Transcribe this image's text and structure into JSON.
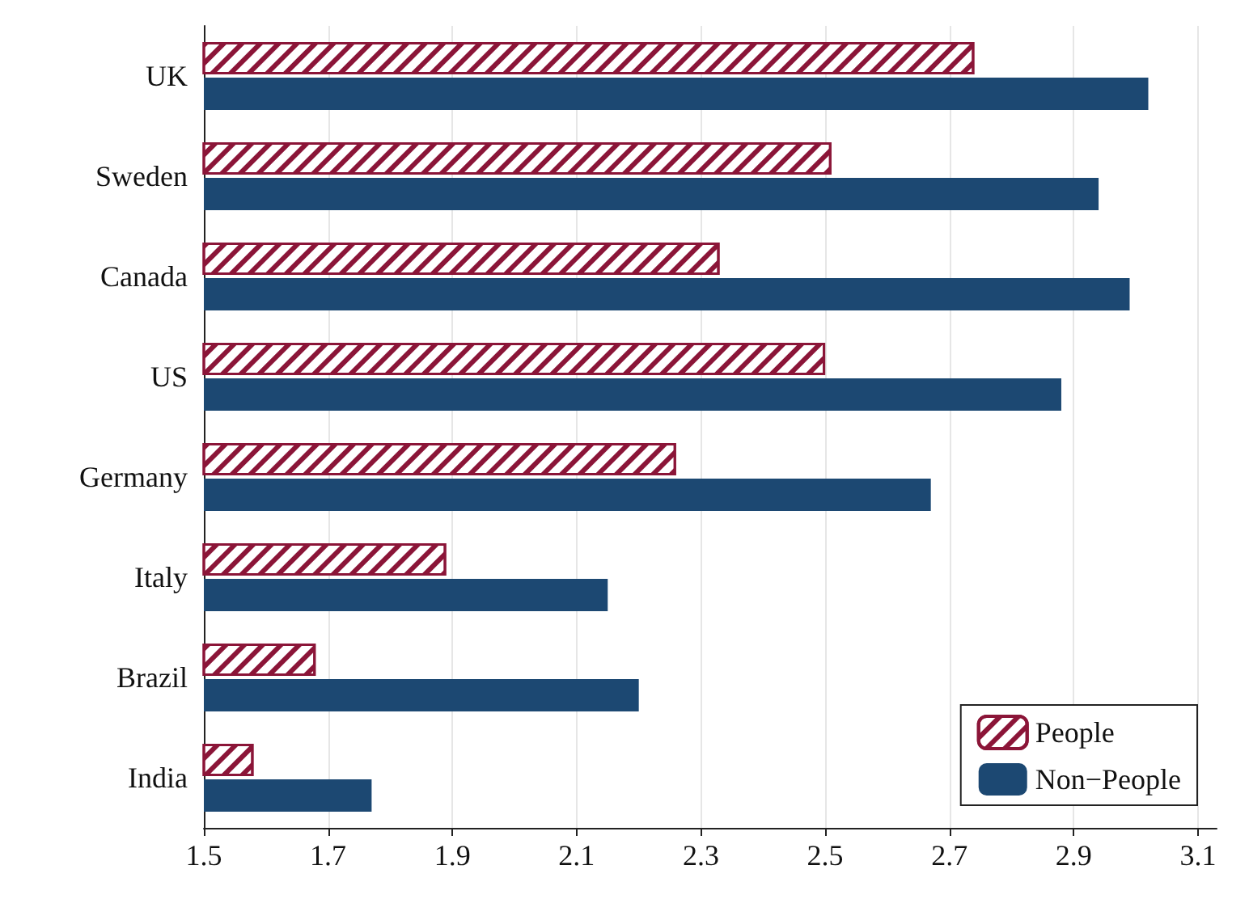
{
  "chart_data": {
    "type": "bar",
    "orientation": "horizontal",
    "categories": [
      "UK",
      "Sweden",
      "Canada",
      "US",
      "Germany",
      "Italy",
      "Brazil",
      "India"
    ],
    "series": [
      {
        "name": "People",
        "color": "#8b1538",
        "values": [
          2.74,
          2.51,
          2.33,
          2.5,
          2.26,
          1.89,
          1.68,
          1.58
        ]
      },
      {
        "name": "Non−People",
        "color": "#1c4872",
        "values": [
          3.02,
          2.94,
          2.99,
          2.88,
          2.67,
          2.15,
          2.2,
          1.77
        ]
      }
    ],
    "xlim": [
      1.5,
      3.13
    ],
    "xticks": [
      1.5,
      1.7,
      1.9,
      2.1,
      2.3,
      2.5,
      2.7,
      2.9,
      3.1
    ],
    "grid": "x",
    "legend": "bottom right"
  }
}
